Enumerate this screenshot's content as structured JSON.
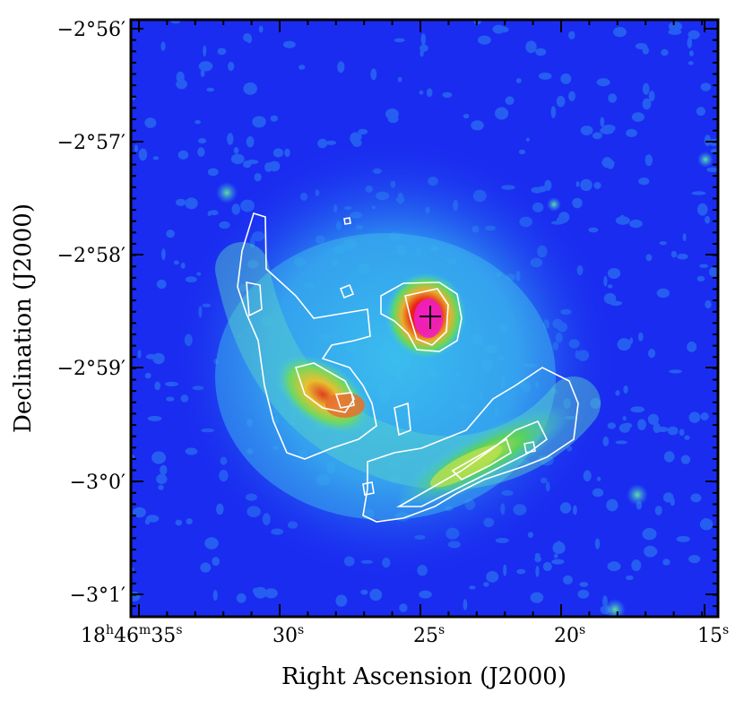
{
  "figure": {
    "ylabel": "Declination (J2000)",
    "xlabel": "Right Ascension (J2000)",
    "y_ticks": [
      "−2°56′",
      "−2°57′",
      "−2°58′",
      "−2°59′",
      "−3°0′",
      "−3°1′"
    ],
    "x_ticks": [
      {
        "main": "18",
        "sup_h": "h",
        "mid": "46",
        "sup_m": "m",
        "end": "35",
        "sup_s": "s"
      },
      {
        "main": "30",
        "sup_s": "s"
      },
      {
        "main": "25",
        "sup_s": "s"
      },
      {
        "main": "20",
        "sup_s": "s"
      },
      {
        "main": "15",
        "sup_s": "s"
      }
    ]
  },
  "colors": {
    "background_blue": "#1a2cf0",
    "cyan": "#30b8f8",
    "green": "#5cd85c",
    "yellow": "#e0e040",
    "orange": "#e87838",
    "red": "#e82010",
    "magenta": "#f020c0",
    "contour": "#ffffff"
  }
}
